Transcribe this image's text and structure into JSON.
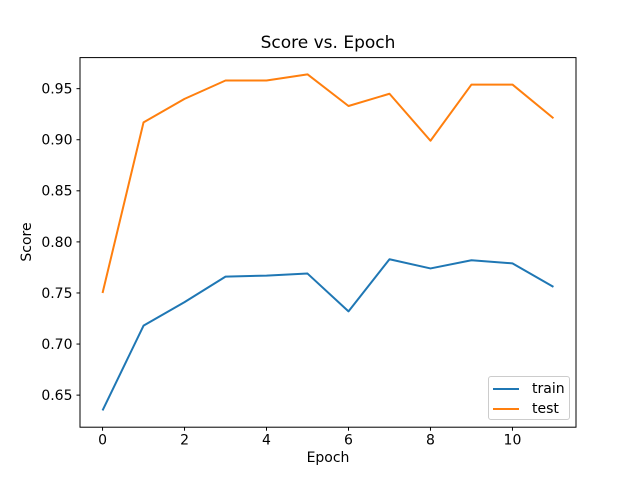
{
  "chart_data": {
    "type": "line",
    "title": "Score vs. Epoch",
    "xlabel": "Epoch",
    "ylabel": "Score",
    "x": [
      0,
      1,
      2,
      3,
      4,
      5,
      6,
      7,
      8,
      9,
      10,
      11
    ],
    "series": [
      {
        "name": "train",
        "color": "#1f77b4",
        "values": [
          0.635,
          0.718,
          0.741,
          0.766,
          0.767,
          0.769,
          0.732,
          0.783,
          0.774,
          0.782,
          0.779,
          0.756
        ]
      },
      {
        "name": "test",
        "color": "#ff7f0e",
        "values": [
          0.75,
          0.917,
          0.94,
          0.958,
          0.958,
          0.964,
          0.933,
          0.945,
          0.899,
          0.954,
          0.954,
          0.921
        ]
      }
    ],
    "xlim": [
      -0.55,
      11.55
    ],
    "ylim": [
      0.6186,
      0.9804
    ],
    "xticks": [
      0,
      2,
      4,
      6,
      8,
      10
    ],
    "yticks": [
      0.65,
      0.7,
      0.75,
      0.8,
      0.85,
      0.9,
      0.95
    ],
    "grid": false,
    "legend_position": "lower right",
    "axis_color": "#000000",
    "background_color": "#ffffff"
  }
}
